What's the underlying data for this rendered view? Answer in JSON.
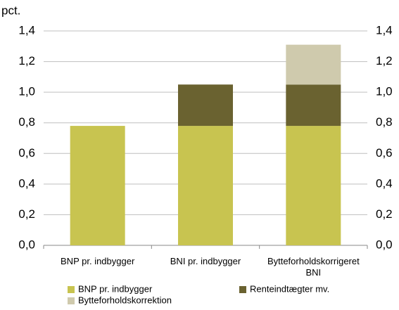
{
  "chart_data": {
    "type": "stacked_bar",
    "y_label": "pct.",
    "categories": [
      "BNP pr. indbygger",
      "BNI pr. indbygger",
      "Bytteforholdskorrigeret BNI"
    ],
    "series": [
      {
        "name": "BNP pr. indbygger",
        "color": "#c8c450",
        "values": [
          0.78,
          0.78,
          0.78
        ]
      },
      {
        "name": "Renteindtægter mv.",
        "color": "#6a6230",
        "values": [
          null,
          0.27,
          0.27
        ]
      },
      {
        "name": "Bytteforholdskorrektion",
        "color": "#cfcaad",
        "values": [
          null,
          null,
          0.26
        ]
      }
    ],
    "ylim": [
      0,
      1.4
    ],
    "yticks": [
      {
        "value": 0,
        "label": "0,0"
      },
      {
        "value": 0.2,
        "label": "0,2"
      },
      {
        "value": 0.4,
        "label": "0,4"
      },
      {
        "value": 0.6,
        "label": "0,6"
      },
      {
        "value": 0.8,
        "label": "0,8"
      },
      {
        "value": 1.0,
        "label": "1,0"
      },
      {
        "value": 1.2,
        "label": "1,2"
      },
      {
        "value": 1.4,
        "label": "1,4"
      }
    ],
    "y2lim": [
      0,
      1.4
    ],
    "y2ticks": [
      {
        "value": 0,
        "label": "0,0"
      },
      {
        "value": 0.2,
        "label": "0,2"
      },
      {
        "value": 0.4,
        "label": "0,4"
      },
      {
        "value": 0.6,
        "label": "0,6"
      },
      {
        "value": 0.8,
        "label": "0,8"
      },
      {
        "value": 1.0,
        "label": "1,0"
      },
      {
        "value": 1.2,
        "label": "1,2"
      },
      {
        "value": 1.4,
        "label": "1,4"
      }
    ],
    "grid": true
  }
}
